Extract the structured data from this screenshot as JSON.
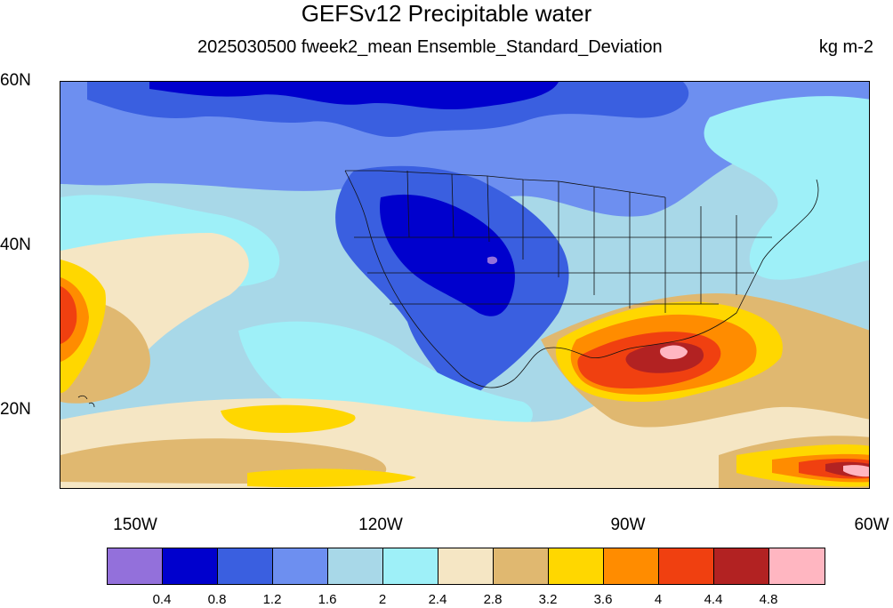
{
  "title": "GEFSv12 Precipitable water",
  "subtitle": "2025030500 fweek2_mean Ensemble_Standard_Deviation",
  "units": "kg m-2",
  "lat_labels": [
    "60N",
    "40N",
    "20N"
  ],
  "lon_labels": [
    "150W",
    "120W",
    "90W",
    "60W"
  ],
  "colorbar": {
    "colors": [
      "#9370db",
      "#0000cd",
      "#3a5fe0",
      "#6d8ff0",
      "#a8d8e8",
      "#9ef0f8",
      "#f5e6c4",
      "#e0b870",
      "#ffd700",
      "#ff8c00",
      "#f04010",
      "#b22222",
      "#ffb6c1"
    ],
    "labels": [
      "0.4",
      "0.8",
      "1.2",
      "1.6",
      "2",
      "2.4",
      "2.8",
      "3.2",
      "3.6",
      "4",
      "4.4",
      "4.8"
    ]
  }
}
